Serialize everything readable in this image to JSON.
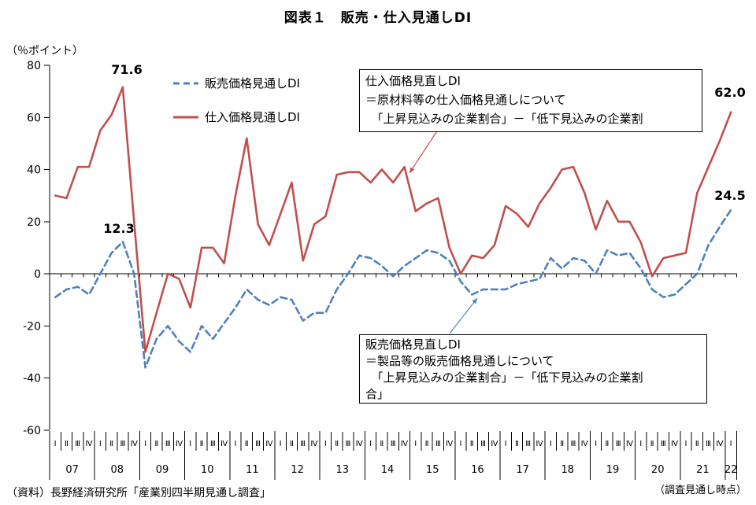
{
  "title": "図表１　販売・仕入見通しDI",
  "y_axis_unit": "（％ポイント）",
  "colors": {
    "blue": "#4F81BD",
    "red": "#C0504D",
    "axis": "#000000"
  },
  "data_labels": {
    "red_peak": "71.6",
    "blue_peak": "12.3",
    "red_end": "62.0",
    "blue_end": "24.5"
  },
  "annotations": {
    "box1_lines": [
      "仕入価格見直しDI",
      "＝原材料等の仕入価格見通しについて",
      "　「上昇見込みの企業割合」－「低下見込みの企業割"
    ],
    "box2_lines": [
      "販売価格見直しDI",
      "＝製品等の販売価格見通しについて",
      "　「上昇見込みの企業割合」－「低下見込みの企業割",
      "合」"
    ]
  },
  "source": "（資料）長野経済研究所「産業別四半期見通し調査」",
  "footnote_right": "（調査見通し時点）",
  "chart_data": {
    "type": "line",
    "title": "図表１　販売・仕入見通しDI",
    "ylabel": "（％ポイント）",
    "ylim": [
      -60,
      80
    ],
    "y_ticks": [
      80,
      60,
      40,
      20,
      0,
      -20,
      -40,
      -60
    ],
    "grid": false,
    "legend_position": "top-left-inside",
    "x_years": [
      "07",
      "08",
      "09",
      "10",
      "11",
      "12",
      "13",
      "14",
      "15",
      "16",
      "17",
      "18",
      "19",
      "20",
      "21",
      "22"
    ],
    "quarters_per_year": [
      4,
      4,
      4,
      4,
      4,
      4,
      4,
      4,
      4,
      4,
      4,
      4,
      4,
      4,
      4,
      1
    ],
    "quarter_labels": [
      "Ⅰ",
      "Ⅱ",
      "Ⅲ",
      "Ⅳ"
    ],
    "series": [
      {
        "name": "販売価格見通しDI",
        "style": "dashed",
        "color": "#4F81BD",
        "values": [
          -9,
          -6,
          -5,
          -8,
          0,
          8,
          12.3,
          0,
          -36,
          -25,
          -20,
          -26,
          -30,
          -20,
          -25,
          -19,
          -13,
          -6,
          -10,
          -12,
          -9,
          -10,
          -18,
          -15,
          -15,
          -6,
          0,
          7,
          6,
          3,
          -1,
          3,
          6,
          9,
          8,
          5,
          -3,
          -8,
          -6,
          -6,
          -6,
          -4,
          -3,
          -2,
          6,
          2,
          6,
          5,
          0,
          9,
          7,
          8,
          2,
          -6,
          -9,
          -8,
          -4,
          0,
          11,
          18,
          24.5
        ]
      },
      {
        "name": "仕入価格見通しDI",
        "style": "solid",
        "color": "#C0504D",
        "values": [
          30,
          29,
          41,
          41,
          55,
          61,
          71.6,
          20,
          -30,
          -15,
          0,
          -2,
          -13,
          10,
          10,
          4,
          30,
          52,
          19,
          11,
          23,
          35,
          5,
          19,
          22,
          38,
          39,
          39,
          35,
          40,
          35,
          41,
          24,
          27,
          29,
          10,
          0,
          7,
          6,
          11,
          26,
          23,
          18,
          27,
          33,
          40,
          41,
          31,
          17,
          28,
          20,
          20,
          12,
          -1,
          6,
          7,
          8,
          31,
          41,
          51,
          62.0
        ]
      }
    ]
  }
}
